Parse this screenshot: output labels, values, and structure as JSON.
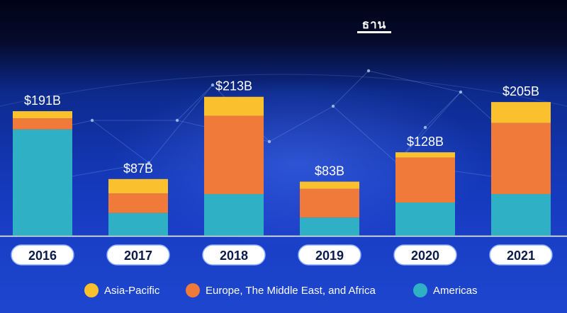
{
  "logo": {
    "text": "ธาน"
  },
  "colors": {
    "asia_pacific": "#fbc02d",
    "emea": "#f07a3a",
    "americas": "#2fb0c4"
  },
  "chart_data": {
    "type": "bar",
    "stacked": true,
    "title": "",
    "xlabel": "",
    "ylabel": "",
    "ylim": [
      0,
      230
    ],
    "categories": [
      "2016",
      "2017",
      "2018",
      "2019",
      "2020",
      "2021"
    ],
    "totals_label": [
      "$191B",
      "$87B",
      "$213B",
      "$83B",
      "$128B",
      "$205B"
    ],
    "totals": [
      191,
      87,
      213,
      83,
      128,
      205
    ],
    "series": [
      {
        "name": "Americas",
        "values": [
          163,
          35,
          64,
          28,
          51,
          64
        ]
      },
      {
        "name": "Europe, The Middle East, and Africa",
        "values": [
          17,
          30,
          120,
          44,
          69,
          109
        ]
      },
      {
        "name": "Asia-Pacific",
        "values": [
          11,
          22,
          29,
          11,
          8,
          32
        ]
      }
    ],
    "legend": [
      "Asia-Pacific",
      "Europe, The Middle East, and Africa",
      "Americas"
    ],
    "legend_position": "bottom",
    "grid": false
  }
}
